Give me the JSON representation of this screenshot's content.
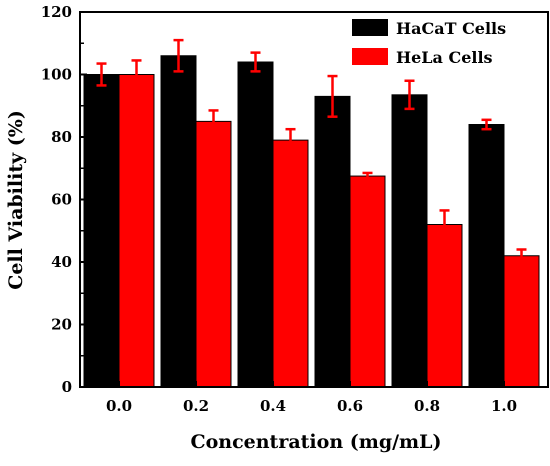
{
  "chart_data": {
    "type": "bar",
    "categories": [
      "0.0",
      "0.2",
      "0.4",
      "0.6",
      "0.8",
      "1.0"
    ],
    "series": [
      {
        "name": "HaCaT Cells",
        "color": "#000000",
        "values": [
          100,
          106,
          104,
          93,
          93.5,
          84
        ],
        "errors": [
          3.5,
          5,
          3,
          6.5,
          4.5,
          1.5
        ]
      },
      {
        "name": "HeLa Cells",
        "color": "#ff0000",
        "values": [
          100,
          85,
          79,
          67.5,
          52,
          42
        ],
        "errors": [
          4.5,
          3.5,
          3.5,
          1,
          4.5,
          2
        ]
      }
    ],
    "error_bar_color": "#ff0000",
    "xlabel": "Concentration (mg/mL)",
    "ylabel": "Cell Viability (%)",
    "ylim": [
      0,
      120
    ],
    "yticks": [
      "0",
      "20",
      "40",
      "60",
      "80",
      "100",
      "120"
    ],
    "grid": false,
    "legend_position": "top-right"
  }
}
